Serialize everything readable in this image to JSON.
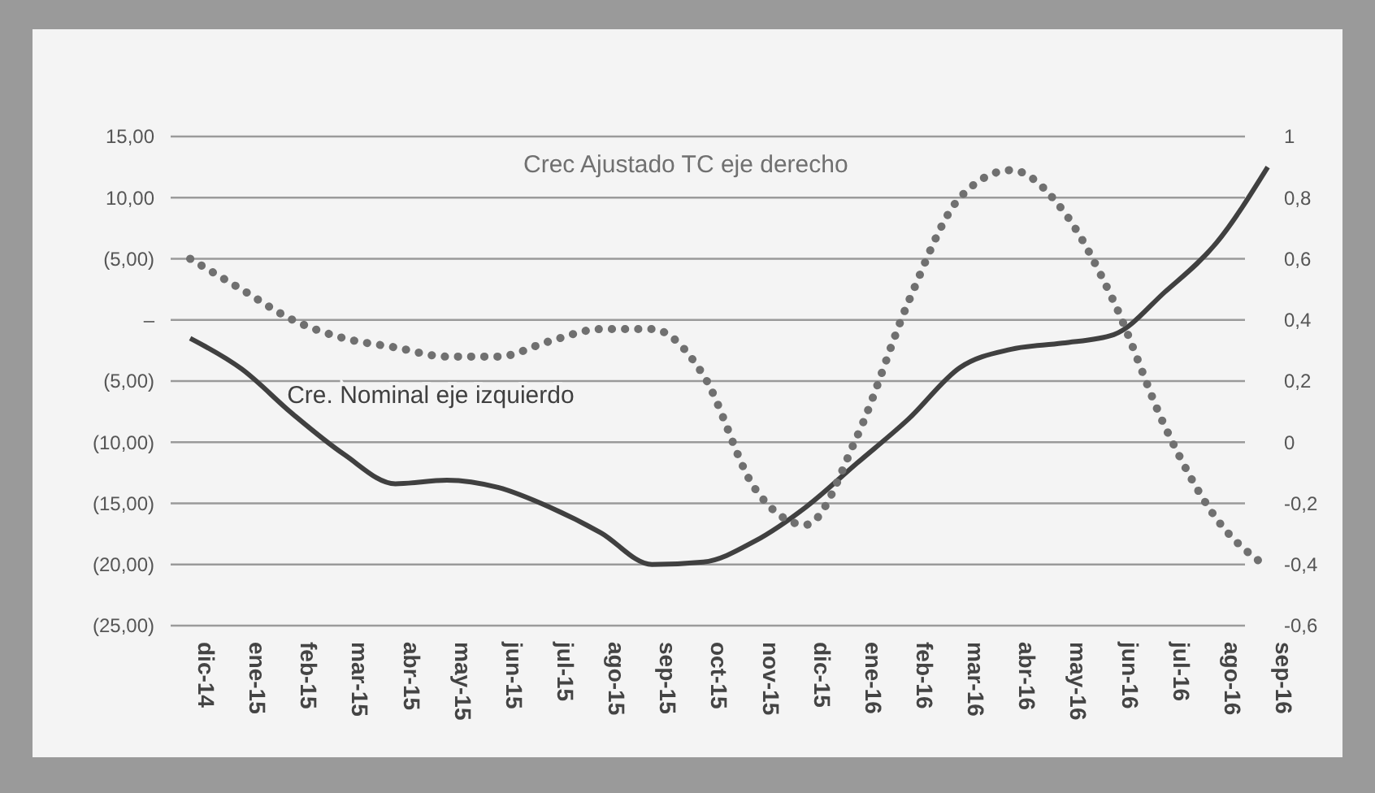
{
  "chart_data": {
    "type": "line",
    "categories": [
      "dic-14",
      "ene-15",
      "feb-15",
      "mar-15",
      "abr-15",
      "may-15",
      "jun-15",
      "jul-15",
      "ago-15",
      "sep-15",
      "oct-15",
      "nov-15",
      "dic-15",
      "ene-16",
      "feb-16",
      "mar-16",
      "abr-16",
      "may-16",
      "jun-16",
      "jul-16",
      "ago-16",
      "sep-16"
    ],
    "series": [
      {
        "name": "Cre. Nominal eje izquierdo",
        "color": "#404040",
        "line_style": "solid",
        "values": [
          -1.5,
          -4,
          -7.7,
          -11,
          -13.4,
          -13.1,
          -13.7,
          -15.3,
          -17.4,
          -20,
          -19.8,
          -18.1,
          -15.3,
          -11.7,
          -8.1,
          -3.9,
          -2.4,
          -1.9,
          -1.2,
          2.3,
          6.3,
          12.5
        ]
      },
      {
        "name": "Crec Ajustado TC eje derecho",
        "color": "#707070",
        "line_style": "dotted",
        "axis": "y2",
        "values": [
          0.6,
          0.5,
          0.4,
          0.34,
          0.31,
          0.28,
          0.28,
          0.33,
          0.37,
          0.37,
          0.22,
          -0.15,
          -0.27,
          0.02,
          0.46,
          0.8,
          0.89,
          0.76,
          0.46,
          0.05,
          -0.25,
          -0.41
        ]
      }
    ],
    "ylim": [
      -25,
      15
    ],
    "yticks": [
      {
        "value": 15,
        "label": "15,00"
      },
      {
        "value": 10,
        "label": "10,00"
      },
      {
        "value": 5,
        "label": "(5,00)"
      },
      {
        "value": 0,
        "label": "–"
      },
      {
        "value": -5,
        "label": "(5,00)"
      },
      {
        "value": -10,
        "label": "(10,00)"
      },
      {
        "value": -15,
        "label": "(15,00)"
      },
      {
        "value": -20,
        "label": "(20,00)"
      },
      {
        "value": -25,
        "label": "(25,00)"
      }
    ],
    "y2lim": [
      -0.6,
      1
    ],
    "y2ticks": [
      {
        "value": 1,
        "label": "1"
      },
      {
        "value": 0.8,
        "label": "0,8"
      },
      {
        "value": 0.6,
        "label": "0,6"
      },
      {
        "value": 0.4,
        "label": "0,4"
      },
      {
        "value": 0.2,
        "label": "0,2"
      },
      {
        "value": 0,
        "label": "0"
      },
      {
        "value": -0.2,
        "label": "-0,2"
      },
      {
        "value": -0.4,
        "label": "-0,4"
      },
      {
        "value": -0.6,
        "label": "-0,6"
      }
    ],
    "grid": "y",
    "marker": "none"
  }
}
